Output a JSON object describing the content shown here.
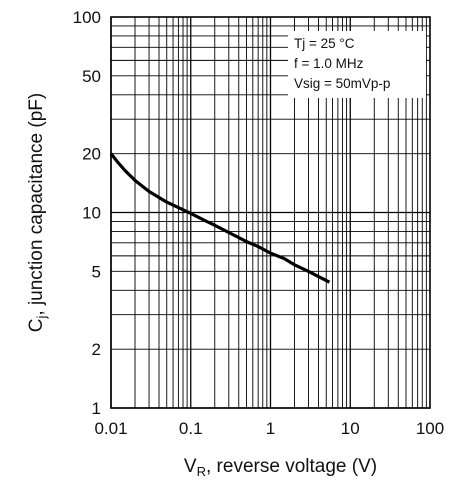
{
  "chart_data": {
    "type": "line",
    "title": "",
    "xlabel": {
      "main": "V",
      "sub": "R",
      "rest": ", reverse voltage (V)"
    },
    "ylabel": {
      "main": "C",
      "sub": "j",
      "rest": ", junction capacitance (pF)"
    },
    "x_scale": "log",
    "y_scale": "log",
    "xlim": [
      0.01,
      100
    ],
    "ylim": [
      1,
      100
    ],
    "x_ticks": [
      {
        "value": 0.01,
        "label": "0.01"
      },
      {
        "value": 0.1,
        "label": "0.1"
      },
      {
        "value": 1,
        "label": "1"
      },
      {
        "value": 10,
        "label": "10"
      },
      {
        "value": 100,
        "label": "100"
      }
    ],
    "y_ticks": [
      {
        "value": 1,
        "label": "1"
      },
      {
        "value": 2,
        "label": "2"
      },
      {
        "value": 5,
        "label": "5"
      },
      {
        "value": 10,
        "label": "10"
      },
      {
        "value": 20,
        "label": "20"
      },
      {
        "value": 50,
        "label": "50"
      },
      {
        "value": 100,
        "label": "100"
      }
    ],
    "grid": true,
    "conditions": [
      "Tj = 25 °C",
      "f = 1.0 MHz",
      "Vsig = 50mVp-p"
    ],
    "conditions_placement": "top-right",
    "series": [
      {
        "color": "#000000",
        "x": [
          0.01,
          0.012,
          0.015,
          0.02,
          0.03,
          0.05,
          0.07,
          0.1,
          0.15,
          0.2,
          0.3,
          0.5,
          0.7,
          1.0,
          1.5,
          2.0,
          3.0,
          4.0,
          5.5
        ],
        "y": [
          20.0,
          18.2,
          16.4,
          14.6,
          12.8,
          11.3,
          10.6,
          9.9,
          9.1,
          8.6,
          7.9,
          7.1,
          6.7,
          6.2,
          5.8,
          5.4,
          5.0,
          4.7,
          4.4
        ]
      }
    ]
  }
}
